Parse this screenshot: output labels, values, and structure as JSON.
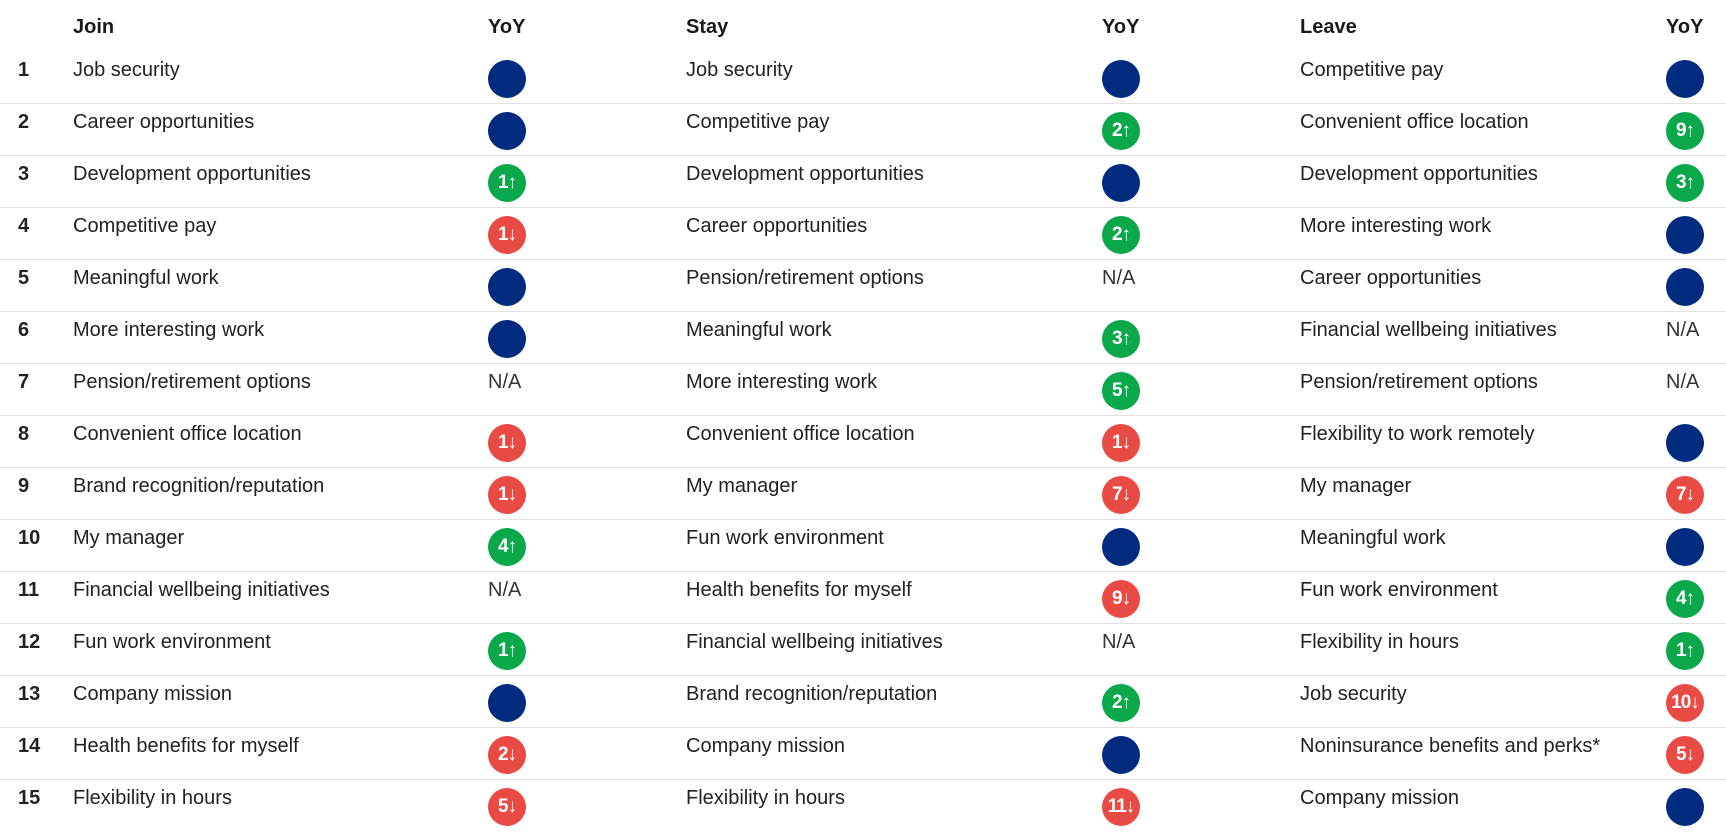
{
  "headers": {
    "join": "Join",
    "join_yoy": "YoY",
    "stay": "Stay",
    "stay_yoy": "YoY",
    "leave": "Leave",
    "leave_yoy": "YoY"
  },
  "colors": {
    "same": "#002b7f",
    "up": "#0aa84a",
    "down": "#e94a43"
  },
  "rows": [
    {
      "rank": "1",
      "join": "Job security",
      "join_yoy": {
        "type": "same",
        "text": ""
      },
      "stay": "Job security",
      "stay_yoy": {
        "type": "same",
        "text": ""
      },
      "leave": "Competitive pay",
      "leave_yoy": {
        "type": "same",
        "text": ""
      }
    },
    {
      "rank": "2",
      "join": "Career opportunities",
      "join_yoy": {
        "type": "same",
        "text": ""
      },
      "stay": "Competitive pay",
      "stay_yoy": {
        "type": "up",
        "text": "2↑"
      },
      "leave": "Convenient office location",
      "leave_yoy": {
        "type": "up",
        "text": "9↑"
      }
    },
    {
      "rank": "3",
      "join": "Development opportunities",
      "join_yoy": {
        "type": "up",
        "text": "1↑"
      },
      "stay": "Development opportunities",
      "stay_yoy": {
        "type": "same",
        "text": ""
      },
      "leave": "Development opportunities",
      "leave_yoy": {
        "type": "up",
        "text": "3↑"
      }
    },
    {
      "rank": "4",
      "join": "Competitive pay",
      "join_yoy": {
        "type": "down",
        "text": "1↓"
      },
      "stay": "Career opportunities",
      "stay_yoy": {
        "type": "up",
        "text": "2↑"
      },
      "leave": "More interesting work",
      "leave_yoy": {
        "type": "same",
        "text": ""
      }
    },
    {
      "rank": "5",
      "join": "Meaningful work",
      "join_yoy": {
        "type": "same",
        "text": ""
      },
      "stay": "Pension/retirement options",
      "stay_yoy": {
        "type": "na",
        "text": "N/A"
      },
      "leave": "Career opportunities",
      "leave_yoy": {
        "type": "same",
        "text": ""
      }
    },
    {
      "rank": "6",
      "join": "More interesting work",
      "join_yoy": {
        "type": "same",
        "text": ""
      },
      "stay": "Meaningful work",
      "stay_yoy": {
        "type": "up",
        "text": "3↑"
      },
      "leave": "Financial wellbeing initiatives",
      "leave_yoy": {
        "type": "na",
        "text": "N/A"
      }
    },
    {
      "rank": "7",
      "join": "Pension/retirement options",
      "join_yoy": {
        "type": "na",
        "text": "N/A"
      },
      "stay": "More interesting work",
      "stay_yoy": {
        "type": "up",
        "text": "5↑"
      },
      "leave": "Pension/retirement options",
      "leave_yoy": {
        "type": "na",
        "text": "N/A"
      }
    },
    {
      "rank": "8",
      "join": "Convenient office location",
      "join_yoy": {
        "type": "down",
        "text": "1↓"
      },
      "stay": "Convenient office location",
      "stay_yoy": {
        "type": "down",
        "text": "1↓"
      },
      "leave": "Flexibility to work remotely",
      "leave_yoy": {
        "type": "same",
        "text": ""
      }
    },
    {
      "rank": "9",
      "join": "Brand recognition/reputation",
      "join_yoy": {
        "type": "down",
        "text": "1↓"
      },
      "stay": "My manager",
      "stay_yoy": {
        "type": "down",
        "text": "7↓"
      },
      "leave": "My manager",
      "leave_yoy": {
        "type": "down",
        "text": "7↓"
      }
    },
    {
      "rank": "10",
      "join": "My manager",
      "join_yoy": {
        "type": "up",
        "text": "4↑"
      },
      "stay": "Fun work environment",
      "stay_yoy": {
        "type": "same",
        "text": ""
      },
      "leave": "Meaningful work",
      "leave_yoy": {
        "type": "same",
        "text": ""
      }
    },
    {
      "rank": "11",
      "join": "Financial wellbeing initiatives",
      "join_yoy": {
        "type": "na",
        "text": "N/A"
      },
      "stay": "Health benefits for myself",
      "stay_yoy": {
        "type": "down",
        "text": "9↓"
      },
      "leave": "Fun work environment",
      "leave_yoy": {
        "type": "up",
        "text": "4↑"
      }
    },
    {
      "rank": "12",
      "join": "Fun work environment",
      "join_yoy": {
        "type": "up",
        "text": "1↑"
      },
      "stay": "Financial wellbeing initiatives",
      "stay_yoy": {
        "type": "na",
        "text": "N/A"
      },
      "leave": "Flexibility in hours",
      "leave_yoy": {
        "type": "up",
        "text": "1↑"
      }
    },
    {
      "rank": "13",
      "join": "Company mission",
      "join_yoy": {
        "type": "same",
        "text": ""
      },
      "stay": "Brand recognition/reputation",
      "stay_yoy": {
        "type": "up",
        "text": "2↑"
      },
      "leave": "Job security",
      "leave_yoy": {
        "type": "down",
        "text": "10↓"
      }
    },
    {
      "rank": "14",
      "join": "Health benefits for myself",
      "join_yoy": {
        "type": "down",
        "text": "2↓"
      },
      "stay": "Company mission",
      "stay_yoy": {
        "type": "same",
        "text": ""
      },
      "leave": "Noninsurance benefits and perks*",
      "leave_yoy": {
        "type": "down",
        "text": "5↓"
      }
    },
    {
      "rank": "15",
      "join": "Flexibility in hours",
      "join_yoy": {
        "type": "down",
        "text": "5↓"
      },
      "stay": "Flexibility in hours",
      "stay_yoy": {
        "type": "down",
        "text": "11↓"
      },
      "leave": "Company mission",
      "leave_yoy": {
        "type": "same",
        "text": ""
      }
    }
  ]
}
